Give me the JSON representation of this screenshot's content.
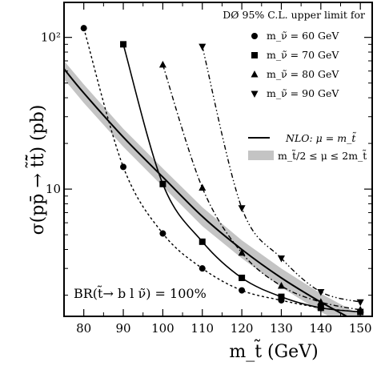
{
  "chart_data": {
    "type": "line",
    "title": "DØ 95% C.L. upper limit for",
    "xlabel": "m_t̃  (GeV)",
    "ylabel": "σ(pp̄ → t̃t̃̄)    (pb)",
    "annotation": "BR(t̃→ b l ν̃) = 100%",
    "xlim": [
      75,
      153
    ],
    "ylim": [
      1.45,
      170
    ],
    "yscale": "log",
    "x_ticks": [
      80,
      90,
      100,
      110,
      120,
      130,
      140,
      150
    ],
    "x_tick_labels": [
      "80",
      "90",
      "100",
      "110",
      "120",
      "130",
      "140",
      "150"
    ],
    "y_ticks": [
      10,
      100
    ],
    "y_tick_labels": [
      "10",
      "10²"
    ],
    "grid": false,
    "legend_position": "top-right",
    "series": [
      {
        "name": "m_ν̃ = 60 GeV",
        "marker": "circle",
        "line_style": "dashed",
        "x": [
          80,
          90,
          100,
          110,
          120,
          130,
          140,
          150
        ],
        "y": [
          115,
          14,
          5.1,
          3.0,
          2.15,
          1.85,
          1.65,
          1.55
        ]
      },
      {
        "name": "m_ν̃ = 70 GeV",
        "marker": "square",
        "line_style": "solid",
        "x": [
          90,
          100,
          110,
          120,
          130,
          140,
          150
        ],
        "y": [
          90,
          10.8,
          4.5,
          2.6,
          1.95,
          1.65,
          1.55
        ]
      },
      {
        "name": "m_ν̃ = 80 GeV",
        "marker": "triangle-up",
        "line_style": "dash-dot",
        "x": [
          100,
          110,
          120,
          130,
          140,
          150
        ],
        "y": [
          66,
          10.2,
          3.8,
          2.3,
          1.8,
          1.6
        ]
      },
      {
        "name": "m_ν̃ = 90 GeV",
        "marker": "triangle-down",
        "line_style": "dash-dot-dot",
        "x": [
          110,
          120,
          130,
          140,
          150
        ],
        "y": [
          87,
          7.5,
          3.5,
          2.1,
          1.8
        ]
      }
    ],
    "theory": {
      "central": {
        "name": "NLO: μ = m_t̃",
        "x": [
          75,
          80,
          90,
          100,
          110,
          120,
          130,
          140,
          150
        ],
        "y": [
          62,
          43,
          22,
          12,
          6.6,
          4.0,
          2.6,
          1.8,
          1.3
        ]
      },
      "band": {
        "name": "m_t̃/2 ≤ μ ≤ 2m_t̃",
        "x": [
          75,
          80,
          90,
          100,
          110,
          120,
          130,
          140,
          150
        ],
        "y_low": [
          53,
          37,
          19,
          10.4,
          5.7,
          3.5,
          2.25,
          1.55,
          1.13
        ],
        "y_high": [
          70,
          49,
          25,
          13.7,
          7.6,
          4.6,
          3.0,
          2.05,
          1.48
        ]
      }
    }
  }
}
